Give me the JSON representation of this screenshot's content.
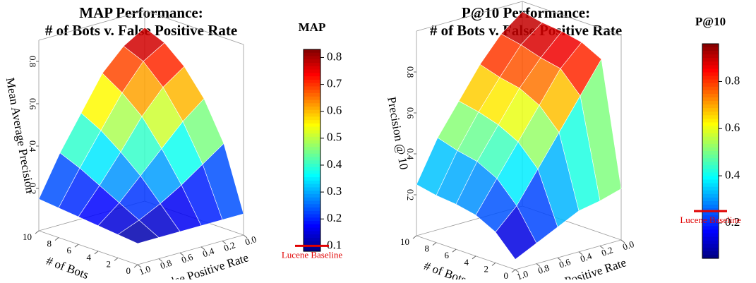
{
  "chart_data": [
    {
      "type": "surface",
      "title": [
        "MAP Performance:",
        "# of Bots v. False Positive Rate"
      ],
      "zlabel": "Mean Average Precision",
      "xlabel": "False Positive Rate",
      "ylabel": "# of Bots",
      "x": [
        0,
        0.2,
        0.4,
        0.6,
        0.8,
        1
      ],
      "xticks": [
        {
          "value": 0,
          "label": "0.0"
        },
        0.2,
        0.4,
        0.6,
        0.8,
        {
          "value": 1,
          "label": "1.0"
        }
      ],
      "y": [
        0,
        2,
        4,
        6,
        8,
        10
      ],
      "yticks": [
        0,
        2,
        4,
        6,
        8,
        10
      ],
      "values": [
        [
          0.1,
          0.1,
          0.1,
          0.1,
          0.1,
          0.1
        ],
        [
          0.4,
          0.33,
          0.26,
          0.2,
          0.15,
          0.11
        ],
        [
          0.58,
          0.5,
          0.4,
          0.3,
          0.2,
          0.12
        ],
        [
          0.7,
          0.63,
          0.52,
          0.38,
          0.25,
          0.13
        ],
        [
          0.78,
          0.72,
          0.6,
          0.45,
          0.3,
          0.14
        ],
        [
          0.82,
          0.76,
          0.66,
          0.5,
          0.34,
          0.15
        ]
      ],
      "zlim": [
        0,
        0.9
      ],
      "zticks": [
        0.2,
        0.4,
        0.6,
        0.8
      ],
      "colorbar": {
        "title": "MAP",
        "lim": [
          0.08,
          0.83
        ],
        "ticks": [
          0.1,
          0.2,
          0.3,
          0.4,
          0.5,
          0.6,
          0.7,
          0.8
        ]
      },
      "baseline": {
        "label": "Lucene Baseline",
        "value": 0.1,
        "color": "#e00000"
      }
    },
    {
      "type": "surface",
      "title": [
        "P@10 Performance:",
        "# of Bots v. False Positive Rate"
      ],
      "zlabel": "Precision @ 10",
      "xlabel": "False Positive Rate",
      "ylabel": "# of Bots",
      "x": [
        0,
        0.2,
        0.4,
        0.6,
        0.8,
        1
      ],
      "xticks": [
        {
          "value": 0,
          "label": "0.0"
        },
        0.2,
        0.4,
        0.6,
        0.8,
        {
          "value": 1,
          "label": "1.0"
        }
      ],
      "y": [
        0,
        2,
        4,
        6,
        8,
        10
      ],
      "yticks": [
        0,
        2,
        4,
        6,
        8,
        10
      ],
      "values": [
        [
          0.25,
          0.22,
          0.2,
          0.15,
          0.1,
          0.05
        ],
        [
          0.85,
          0.7,
          0.55,
          0.4,
          0.25,
          0.15
        ],
        [
          0.9,
          0.8,
          0.65,
          0.5,
          0.35,
          0.2
        ],
        [
          0.92,
          0.82,
          0.7,
          0.55,
          0.4,
          0.22
        ],
        [
          0.93,
          0.85,
          0.72,
          0.58,
          0.42,
          0.23
        ],
        [
          0.95,
          0.87,
          0.75,
          0.6,
          0.45,
          0.25
        ]
      ],
      "zlim": [
        0,
        1.0
      ],
      "zticks": [
        0.2,
        0.4,
        0.6,
        0.8
      ],
      "colorbar": {
        "title": "P@10",
        "lim": [
          0.05,
          0.96
        ],
        "ticks": [
          0.2,
          0.4,
          0.6,
          0.8
        ]
      },
      "baseline": {
        "label": "Lucene Baseline",
        "value": 0.25,
        "color": "#e00000"
      }
    }
  ]
}
